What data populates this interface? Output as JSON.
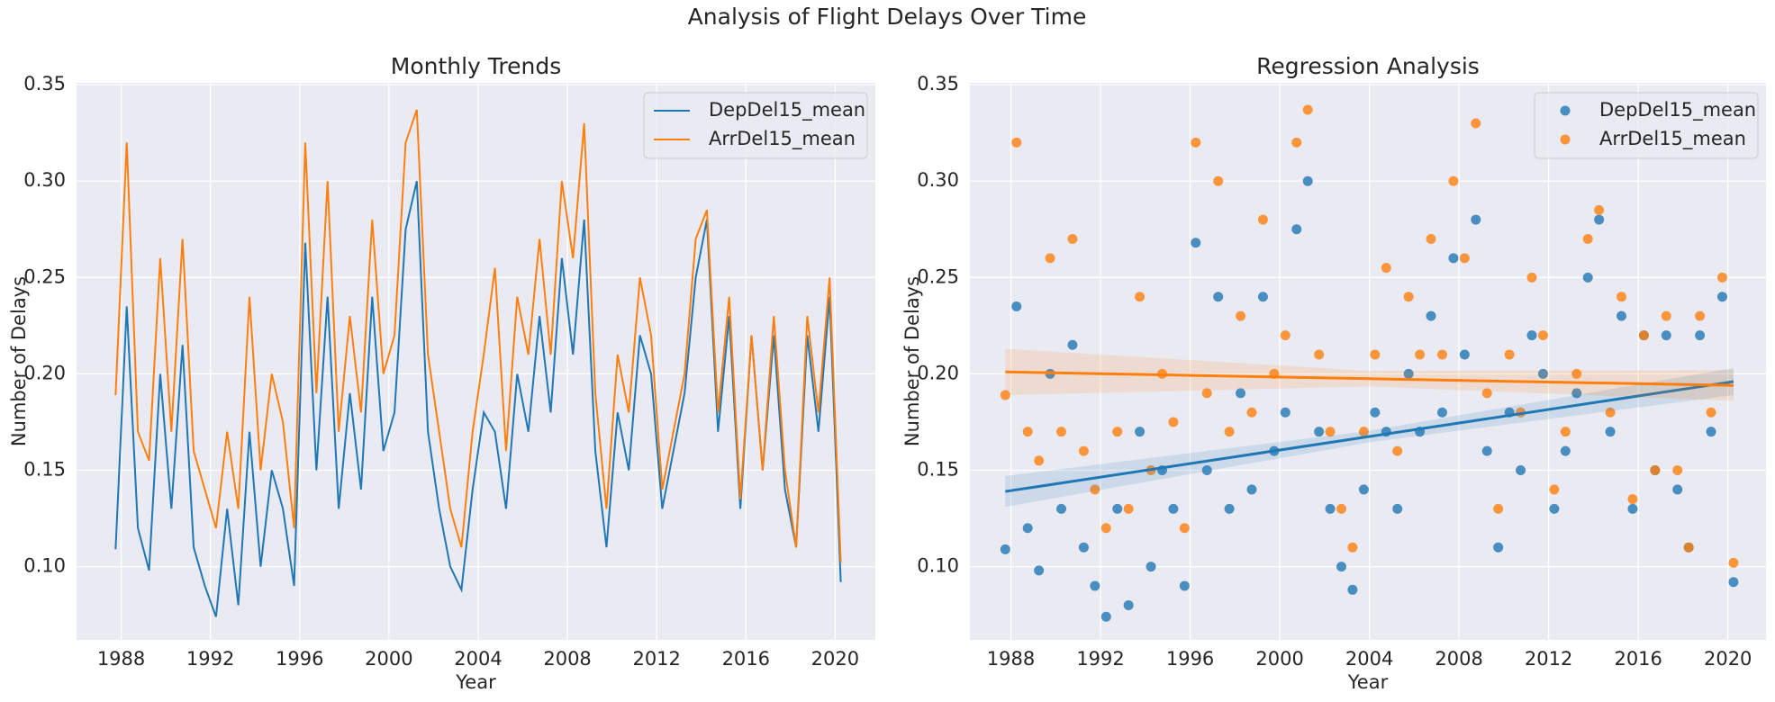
{
  "title": "Analysis of Flight Delays Over Time",
  "chart_data": [
    {
      "type": "line",
      "title": "Monthly Trends",
      "xlabel": "Year",
      "ylabel": "Number of Delays",
      "x": [
        1987.75,
        1988.25,
        1988.75,
        1989.25,
        1989.75,
        1990.25,
        1990.75,
        1991.25,
        1991.75,
        1992.25,
        1992.75,
        1993.25,
        1993.75,
        1994.25,
        1994.75,
        1995.25,
        1995.75,
        1996.25,
        1996.75,
        1997.25,
        1997.75,
        1998.25,
        1998.75,
        1999.25,
        1999.75,
        2000.25,
        2000.75,
        2001.25,
        2001.75,
        2002.25,
        2002.75,
        2003.25,
        2003.75,
        2004.25,
        2004.75,
        2005.25,
        2005.75,
        2006.25,
        2006.75,
        2007.25,
        2007.75,
        2008.25,
        2008.75,
        2009.25,
        2009.75,
        2010.25,
        2010.75,
        2011.25,
        2011.75,
        2012.25,
        2012.75,
        2013.25,
        2013.75,
        2014.25,
        2014.75,
        2015.25,
        2015.75,
        2016.25,
        2016.75,
        2017.25,
        2017.75,
        2018.25,
        2018.75,
        2019.25,
        2019.75,
        2020.25
      ],
      "series": [
        {
          "name": "DepDel15_mean",
          "color": "#1f77b4",
          "values": [
            0.109,
            0.235,
            0.12,
            0.098,
            0.2,
            0.13,
            0.215,
            0.11,
            0.09,
            0.074,
            0.13,
            0.08,
            0.17,
            0.1,
            0.15,
            0.13,
            0.09,
            0.268,
            0.15,
            0.24,
            0.13,
            0.19,
            0.14,
            0.24,
            0.16,
            0.18,
            0.275,
            0.3,
            0.17,
            0.13,
            0.1,
            0.088,
            0.14,
            0.18,
            0.17,
            0.13,
            0.2,
            0.17,
            0.23,
            0.18,
            0.26,
            0.21,
            0.28,
            0.16,
            0.11,
            0.18,
            0.15,
            0.22,
            0.2,
            0.13,
            0.16,
            0.19,
            0.25,
            0.28,
            0.17,
            0.23,
            0.13,
            0.22,
            0.15,
            0.22,
            0.14,
            0.11,
            0.22,
            0.17,
            0.24,
            0.092
          ]
        },
        {
          "name": "ArrDel15_mean",
          "color": "#ff7f0e",
          "values": [
            0.189,
            0.32,
            0.17,
            0.155,
            0.26,
            0.17,
            0.27,
            0.16,
            0.14,
            0.12,
            0.17,
            0.13,
            0.24,
            0.15,
            0.2,
            0.175,
            0.12,
            0.32,
            0.19,
            0.3,
            0.17,
            0.23,
            0.18,
            0.28,
            0.2,
            0.22,
            0.32,
            0.337,
            0.21,
            0.17,
            0.13,
            0.11,
            0.17,
            0.21,
            0.255,
            0.16,
            0.24,
            0.21,
            0.27,
            0.21,
            0.3,
            0.26,
            0.33,
            0.19,
            0.13,
            0.21,
            0.18,
            0.25,
            0.22,
            0.14,
            0.17,
            0.2,
            0.27,
            0.285,
            0.18,
            0.24,
            0.135,
            0.22,
            0.15,
            0.23,
            0.15,
            0.11,
            0.23,
            0.18,
            0.25,
            0.102
          ]
        }
      ],
      "xlim": [
        1986.0,
        2021.8
      ],
      "xticks": [
        1988,
        1992,
        1996,
        2000,
        2004,
        2008,
        2012,
        2016,
        2020
      ],
      "ylim": [
        0.062,
        0.351
      ],
      "yticks": [
        {
          "value": 0.1,
          "label": "0.10"
        },
        0.15,
        {
          "value": 0.2,
          "label": "0.20"
        },
        0.25,
        {
          "value": 0.3,
          "label": "0.30"
        },
        0.35
      ],
      "grid": true,
      "legend": "upper right"
    },
    {
      "type": "scatter",
      "title": "Regression Analysis",
      "xlabel": "Year",
      "ylabel": "Number of Delays",
      "x": [
        1987.75,
        1988.25,
        1988.75,
        1989.25,
        1989.75,
        1990.25,
        1990.75,
        1991.25,
        1991.75,
        1992.25,
        1992.75,
        1993.25,
        1993.75,
        1994.25,
        1994.75,
        1995.25,
        1995.75,
        1996.25,
        1996.75,
        1997.25,
        1997.75,
        1998.25,
        1998.75,
        1999.25,
        1999.75,
        2000.25,
        2000.75,
        2001.25,
        2001.75,
        2002.25,
        2002.75,
        2003.25,
        2003.75,
        2004.25,
        2004.75,
        2005.25,
        2005.75,
        2006.25,
        2006.75,
        2007.25,
        2007.75,
        2008.25,
        2008.75,
        2009.25,
        2009.75,
        2010.25,
        2010.75,
        2011.25,
        2011.75,
        2012.25,
        2012.75,
        2013.25,
        2013.75,
        2014.25,
        2014.75,
        2015.25,
        2015.75,
        2016.25,
        2016.75,
        2017.25,
        2017.75,
        2018.25,
        2018.75,
        2019.25,
        2019.75,
        2020.25
      ],
      "series": [
        {
          "name": "DepDel15_mean",
          "color": "#1f77b4",
          "values": [
            0.109,
            0.235,
            0.12,
            0.098,
            0.2,
            0.13,
            0.215,
            0.11,
            0.09,
            0.074,
            0.13,
            0.08,
            0.17,
            0.1,
            0.15,
            0.13,
            0.09,
            0.268,
            0.15,
            0.24,
            0.13,
            0.19,
            0.14,
            0.24,
            0.16,
            0.18,
            0.275,
            0.3,
            0.17,
            0.13,
            0.1,
            0.088,
            0.14,
            0.18,
            0.17,
            0.13,
            0.2,
            0.17,
            0.23,
            0.18,
            0.26,
            0.21,
            0.28,
            0.16,
            0.11,
            0.18,
            0.15,
            0.22,
            0.2,
            0.13,
            0.16,
            0.19,
            0.25,
            0.28,
            0.17,
            0.23,
            0.13,
            0.22,
            0.15,
            0.22,
            0.14,
            0.11,
            0.22,
            0.17,
            0.24,
            0.092
          ],
          "fit": {
            "x": [
              1987.75,
              2004,
              2020.25
            ],
            "values": [
              0.139,
              0.1675,
              0.196
            ],
            "ci_lower": [
              0.131,
              0.1645,
              0.189
            ],
            "ci_upper": [
              0.147,
              0.1705,
              0.203
            ]
          }
        },
        {
          "name": "ArrDel15_mean",
          "color": "#ff7f0e",
          "values": [
            0.189,
            0.32,
            0.17,
            0.155,
            0.26,
            0.17,
            0.27,
            0.16,
            0.14,
            0.12,
            0.17,
            0.13,
            0.24,
            0.15,
            0.2,
            0.175,
            0.12,
            0.32,
            0.19,
            0.3,
            0.17,
            0.23,
            0.18,
            0.28,
            0.2,
            0.22,
            0.32,
            0.337,
            0.21,
            0.17,
            0.13,
            0.11,
            0.17,
            0.21,
            0.255,
            0.16,
            0.24,
            0.21,
            0.27,
            0.21,
            0.3,
            0.26,
            0.33,
            0.19,
            0.13,
            0.21,
            0.18,
            0.25,
            0.22,
            0.14,
            0.17,
            0.2,
            0.27,
            0.285,
            0.18,
            0.24,
            0.135,
            0.22,
            0.15,
            0.23,
            0.15,
            0.11,
            0.23,
            0.18,
            0.25,
            0.102
          ],
          "fit": {
            "x": [
              1987.75,
              2004,
              2020.25
            ],
            "values": [
              0.201,
              0.1975,
              0.194
            ],
            "ci_lower": [
              0.189,
              0.1935,
              0.186
            ],
            "ci_upper": [
              0.213,
              0.2015,
              0.202
            ]
          }
        }
      ],
      "xlim": [
        1986.17,
        2021.7
      ],
      "xticks": [
        1988,
        1992,
        1996,
        2000,
        2004,
        2008,
        2012,
        2016,
        2020
      ],
      "ylim": [
        0.062,
        0.351
      ],
      "yticks": [
        {
          "value": 0.1,
          "label": "0.10"
        },
        0.15,
        {
          "value": 0.2,
          "label": "0.20"
        },
        0.25,
        {
          "value": 0.3,
          "label": "0.30"
        },
        0.35
      ],
      "grid": true,
      "legend": "upper right"
    }
  ]
}
